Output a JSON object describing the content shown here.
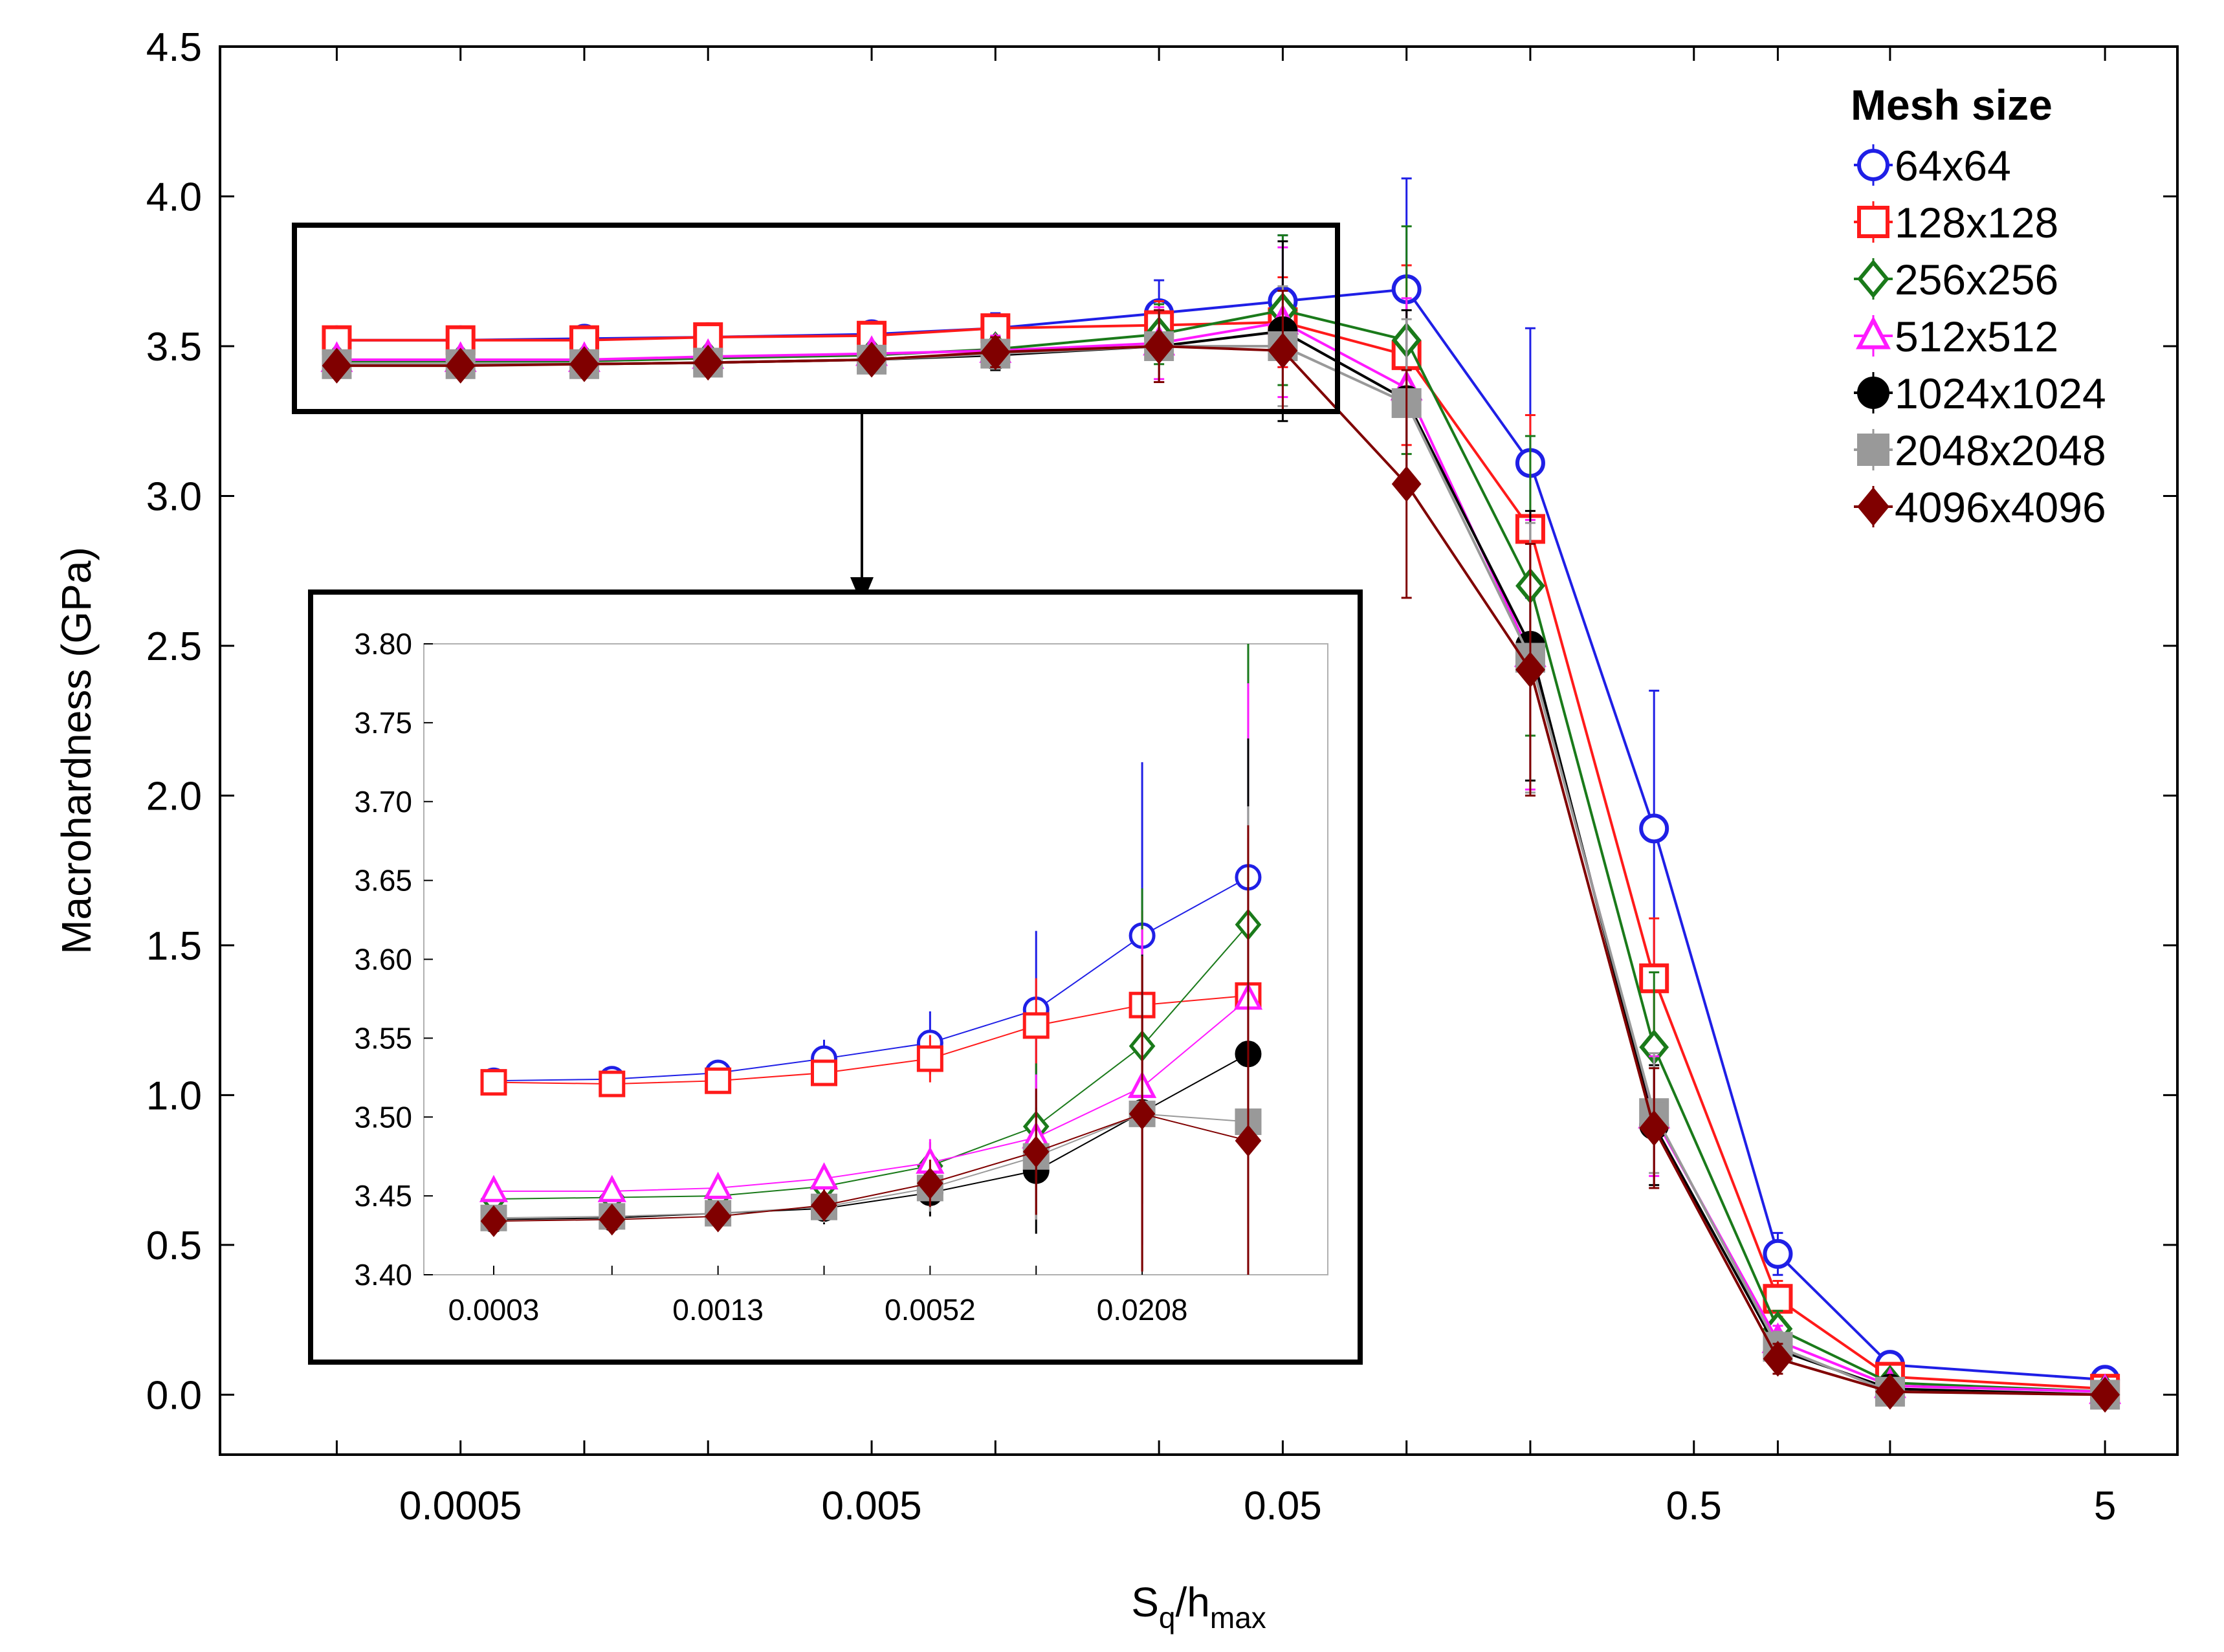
{
  "chart_data": [
    {
      "id": "main",
      "type": "line",
      "xscale": "log",
      "xlabel": {
        "base": "S",
        "sub1": "q",
        "mid": "/h",
        "sub2": "max"
      },
      "ylabel": "Macrohardness (GPa)",
      "ylim": [
        -0.2,
        4.5
      ],
      "xlim": [
        0.00013,
        7.5
      ],
      "yticks": [
        0.0,
        0.5,
        1.0,
        1.5,
        2.0,
        2.5,
        3.0,
        3.5,
        4.0,
        4.5
      ],
      "ytick_labels": [
        "0.0",
        "0.5",
        "1.0",
        "1.5",
        "2.0",
        "2.5",
        "3.0",
        "3.5",
        "4.0",
        "4.5"
      ],
      "xticks": [
        0.0005,
        0.005,
        0.05,
        0.5,
        5
      ],
      "xtick_labels": [
        "0.0005",
        "0.005",
        "0.05",
        "0.5",
        "5"
      ],
      "x": [
        0.00025,
        0.0005,
        0.001,
        0.002,
        0.005,
        0.01,
        0.025,
        0.05,
        0.1,
        0.2,
        0.4,
        0.8,
        1.5,
        5
      ],
      "legend": {
        "title": "Mesh size",
        "position": "top-right"
      },
      "series": [
        {
          "name": "64x64",
          "color": "#1f1fe6",
          "marker": "circle-open",
          "values": [
            3.52,
            3.52,
            3.525,
            3.53,
            3.54,
            3.56,
            3.61,
            3.65,
            3.69,
            3.11,
            1.89,
            0.47,
            0.1,
            0.05
          ],
          "errors": [
            0.01,
            0.01,
            0.01,
            0.015,
            0.02,
            0.05,
            0.11,
            0.22,
            0.37,
            0.45,
            0.46,
            0.07,
            0.03,
            0.02
          ]
        },
        {
          "name": "128x128",
          "color": "#ff1a1a",
          "marker": "square-open",
          "values": [
            3.52,
            3.52,
            3.52,
            3.53,
            3.535,
            3.56,
            3.57,
            3.58,
            3.47,
            2.89,
            1.39,
            0.32,
            0.06,
            0.02
          ],
          "errors": [
            0.01,
            0.01,
            0.01,
            0.015,
            0.02,
            0.03,
            0.08,
            0.15,
            0.3,
            0.38,
            0.2,
            0.06,
            0.02,
            0.02
          ]
        },
        {
          "name": "256x256",
          "color": "#1a7a1a",
          "marker": "diamond-open",
          "values": [
            3.45,
            3.45,
            3.45,
            3.46,
            3.47,
            3.49,
            3.54,
            3.62,
            3.52,
            2.7,
            1.16,
            0.22,
            0.04,
            0.01
          ],
          "errors": [
            0.01,
            0.01,
            0.01,
            0.015,
            0.02,
            0.04,
            0.1,
            0.25,
            0.38,
            0.5,
            0.25,
            0.06,
            0.02,
            0.02
          ]
        },
        {
          "name": "512x512",
          "color": "#ff1aff",
          "marker": "triangle-open",
          "values": [
            3.455,
            3.455,
            3.455,
            3.465,
            3.475,
            3.485,
            3.51,
            3.58,
            3.36,
            2.47,
            0.93,
            0.18,
            0.03,
            0.01
          ],
          "errors": [
            0.01,
            0.01,
            0.01,
            0.015,
            0.02,
            0.05,
            0.12,
            0.25,
            0.3,
            0.45,
            0.2,
            0.05,
            0.02,
            0.02
          ]
        },
        {
          "name": "1024x1024",
          "color": "#000000",
          "marker": "circle-filled",
          "values": [
            3.44,
            3.44,
            3.44,
            3.445,
            3.455,
            3.47,
            3.5,
            3.55,
            3.32,
            2.5,
            0.9,
            0.15,
            0.02,
            0.0
          ],
          "errors": [
            0.01,
            0.01,
            0.01,
            0.015,
            0.02,
            0.05,
            0.12,
            0.3,
            0.3,
            0.45,
            0.2,
            0.05,
            0.02,
            0.02
          ]
        },
        {
          "name": "2048x2048",
          "color": "#999999",
          "marker": "square-filled",
          "values": [
            3.44,
            3.44,
            3.44,
            3.445,
            3.455,
            3.475,
            3.5,
            3.5,
            3.31,
            2.46,
            0.94,
            0.16,
            0.01,
            0.0
          ],
          "errors": [
            0.01,
            0.01,
            0.01,
            0.015,
            0.02,
            0.05,
            0.12,
            0.2,
            0.28,
            0.45,
            0.2,
            0.05,
            0.02,
            0.02
          ]
        },
        {
          "name": "4096x4096",
          "color": "#800000",
          "marker": "diamond-filled",
          "values": [
            3.435,
            3.435,
            3.44,
            3.445,
            3.455,
            3.48,
            3.5,
            3.485,
            3.04,
            2.42,
            0.89,
            0.12,
            0.01,
            0.0
          ],
          "errors": [
            0.01,
            0.01,
            0.01,
            0.015,
            0.02,
            0.05,
            0.12,
            0.2,
            0.38,
            0.42,
            0.2,
            0.05,
            0.02,
            0.02
          ]
        }
      ]
    },
    {
      "id": "inset",
      "type": "line",
      "title": "",
      "xscale": "log",
      "xlim": [
        0.00019,
        0.07
      ],
      "ylim": [
        3.4,
        3.8
      ],
      "yticks": [
        3.4,
        3.45,
        3.5,
        3.55,
        3.6,
        3.65,
        3.7,
        3.75,
        3.8
      ],
      "ytick_labels": [
        "3.40",
        "3.45",
        "3.50",
        "3.55",
        "3.60",
        "3.65",
        "3.70",
        "3.75",
        "3.80"
      ],
      "xticks": [
        0.0003,
        0.0013,
        0.0052,
        0.0208
      ],
      "xtick_labels": [
        "0.0003",
        "0.0013",
        "0.0052",
        "0.0208"
      ],
      "x": [
        0.0003,
        0.00065,
        0.0013,
        0.0026,
        0.0052,
        0.0104,
        0.0208,
        0.0416
      ],
      "series": [
        {
          "name": "64x64",
          "values": [
            3.523,
            3.524,
            3.528,
            3.537,
            3.547,
            3.568,
            3.615,
            3.652
          ],
          "errors": [
            0.002,
            0.002,
            0.003,
            0.012,
            0.02,
            0.05,
            0.11,
            0.22
          ]
        },
        {
          "name": "128x128",
          "values": [
            3.522,
            3.521,
            3.523,
            3.528,
            3.537,
            3.558,
            3.571,
            3.577
          ],
          "errors": [
            0.002,
            0.002,
            0.003,
            0.008,
            0.015,
            0.03,
            0.06,
            0.1
          ]
        },
        {
          "name": "256x256",
          "values": [
            3.448,
            3.449,
            3.45,
            3.456,
            3.469,
            3.494,
            3.545,
            3.622
          ],
          "errors": [
            0.002,
            0.002,
            0.003,
            0.008,
            0.015,
            0.04,
            0.1,
            0.2
          ]
        },
        {
          "name": "512x512",
          "values": [
            3.453,
            3.453,
            3.455,
            3.461,
            3.471,
            3.487,
            3.519,
            3.575
          ],
          "errors": [
            0.002,
            0.002,
            0.003,
            0.008,
            0.015,
            0.04,
            0.1,
            0.2
          ]
        },
        {
          "name": "1024x1024",
          "values": [
            3.435,
            3.436,
            3.439,
            3.442,
            3.452,
            3.466,
            3.503,
            3.54
          ],
          "errors": [
            0.002,
            0.002,
            0.003,
            0.01,
            0.015,
            0.04,
            0.1,
            0.2
          ]
        },
        {
          "name": "2048x2048",
          "values": [
            3.436,
            3.437,
            3.439,
            3.443,
            3.455,
            3.475,
            3.502,
            3.497
          ],
          "errors": [
            0.002,
            0.002,
            0.003,
            0.01,
            0.015,
            0.04,
            0.1,
            0.2
          ]
        },
        {
          "name": "4096x4096",
          "values": [
            3.434,
            3.435,
            3.437,
            3.444,
            3.458,
            3.478,
            3.502,
            3.485
          ],
          "errors": [
            0.002,
            0.002,
            0.003,
            0.01,
            0.015,
            0.04,
            0.1,
            0.2
          ]
        }
      ]
    }
  ]
}
